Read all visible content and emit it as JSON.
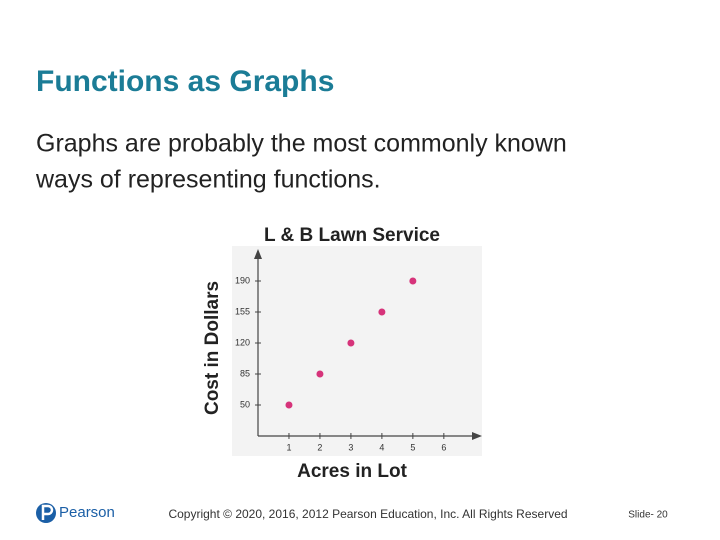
{
  "slide": {
    "title": "Functions as Graphs",
    "body": [
      "Graphs are probably the most commonly known",
      "ways of representing functions."
    ],
    "logo": "Pearson",
    "copyright": "Copyright © 2020, 2016, 2012 Pearson Education, Inc. All Rights Reserved",
    "slide_number": "Slide- 20"
  },
  "chart_data": {
    "type": "scatter",
    "title": "L & B Lawn Service",
    "x_label": "Acres in Lot",
    "y_label": "Cost in Dollars",
    "x": [
      1,
      2,
      3,
      4,
      5
    ],
    "values": [
      50,
      85,
      120,
      155,
      190
    ],
    "color": "#d6337a",
    "xlim": [
      0,
      7.2
    ],
    "ylim": [
      15,
      225
    ],
    "xticks": [
      1,
      2,
      3,
      4,
      5,
      6
    ],
    "yticks": [
      50,
      85,
      120,
      155,
      190
    ],
    "grid": false
  }
}
